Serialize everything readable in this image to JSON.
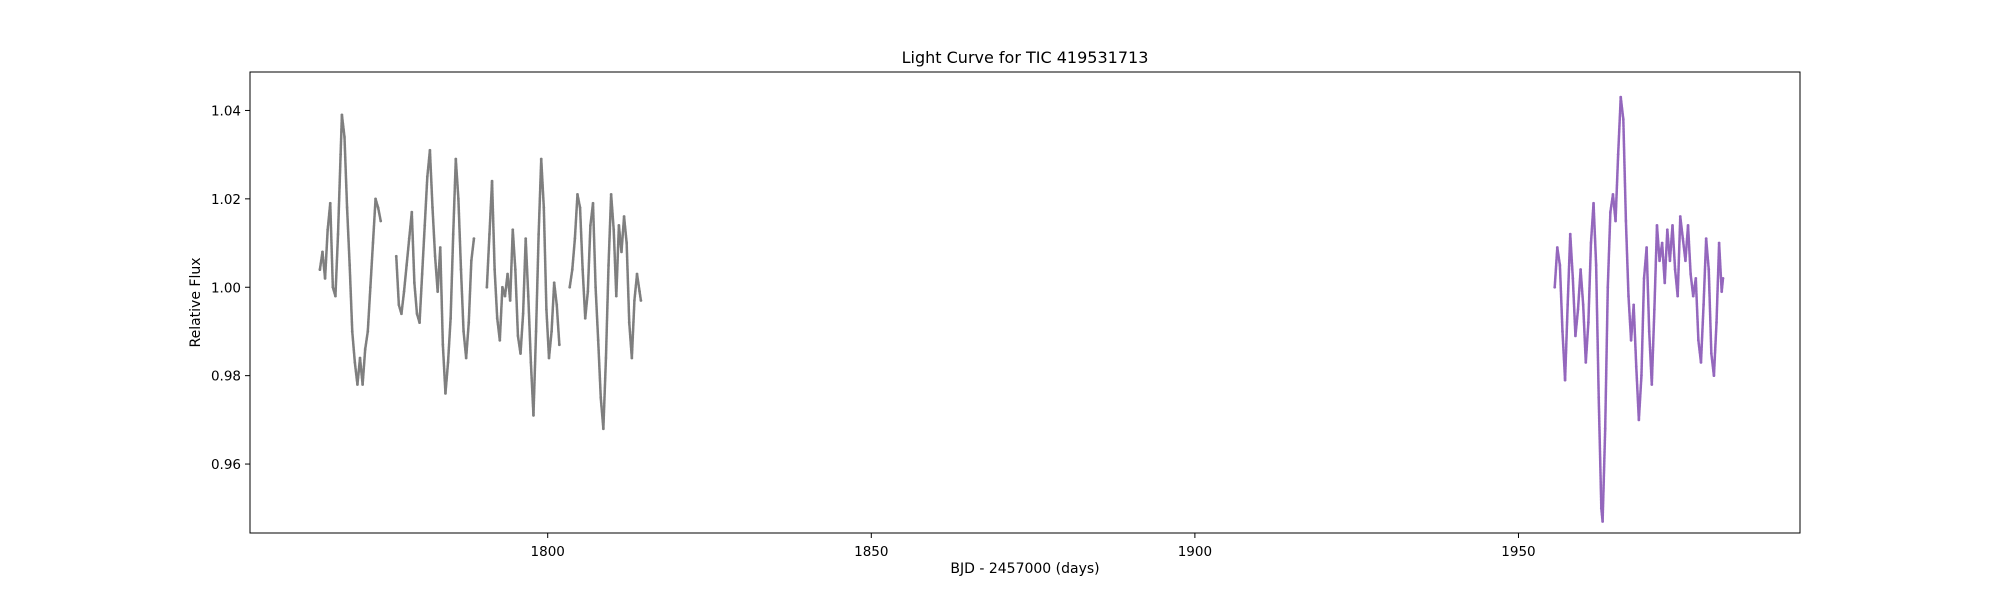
{
  "chart_data": {
    "type": "scatter",
    "title": "Light Curve for TIC 419531713",
    "xlabel": "BJD - 2457000 (days)",
    "ylabel": "Relative Flux",
    "xlim": [
      1754,
      1993.5
    ],
    "ylim": [
      0.9444,
      1.0487
    ],
    "xticks": [
      1800,
      1850,
      1900,
      1950
    ],
    "xtick_labels": [
      "1800",
      "1850",
      "1900",
      "1950"
    ],
    "yticks": [
      0.96,
      0.98,
      1.0,
      1.02,
      1.04
    ],
    "ytick_labels": [
      "0.96",
      "0.98",
      "1.00",
      "1.02",
      "1.04"
    ],
    "grid": false,
    "legend": "none",
    "series": [
      {
        "color": "#7f7f7f",
        "marker_size": "small",
        "points": [
          [
            1764.8,
            1.004
          ],
          [
            1765.2,
            1.008
          ],
          [
            1765.6,
            1.002
          ],
          [
            1766.0,
            1.013
          ],
          [
            1766.4,
            1.019
          ],
          [
            1766.8,
            1.0
          ],
          [
            1767.2,
            0.998
          ],
          [
            1767.6,
            1.012
          ],
          [
            1768.0,
            1.03
          ],
          [
            1768.2,
            1.039
          ],
          [
            1768.6,
            1.034
          ],
          [
            1769.0,
            1.018
          ],
          [
            1769.4,
            1.005
          ],
          [
            1769.8,
            0.99
          ],
          [
            1770.2,
            0.983
          ],
          [
            1770.6,
            0.978
          ],
          [
            1771.0,
            0.984
          ],
          [
            1771.4,
            0.978
          ],
          [
            1771.8,
            0.986
          ],
          [
            1772.2,
            0.99
          ],
          [
            1772.6,
            1.0
          ],
          [
            1773.0,
            1.01
          ],
          [
            1773.4,
            1.02
          ],
          [
            1773.8,
            1.018
          ],
          [
            1774.2,
            1.015
          ],
          [
            1776.6,
            1.007
          ],
          [
            1777.0,
            0.996
          ],
          [
            1777.4,
            0.994
          ],
          [
            1777.8,
            0.999
          ],
          [
            1778.2,
            1.005
          ],
          [
            1778.6,
            1.011
          ],
          [
            1779.0,
            1.017
          ],
          [
            1779.4,
            1.001
          ],
          [
            1779.8,
            0.994
          ],
          [
            1780.2,
            0.992
          ],
          [
            1780.6,
            1.003
          ],
          [
            1781.0,
            1.014
          ],
          [
            1781.4,
            1.025
          ],
          [
            1781.8,
            1.031
          ],
          [
            1782.2,
            1.018
          ],
          [
            1782.6,
            1.007
          ],
          [
            1783.0,
            0.999
          ],
          [
            1783.4,
            1.009
          ],
          [
            1783.8,
            0.987
          ],
          [
            1784.2,
            0.976
          ],
          [
            1784.6,
            0.983
          ],
          [
            1785.0,
            0.993
          ],
          [
            1785.4,
            1.012
          ],
          [
            1785.8,
            1.029
          ],
          [
            1786.2,
            1.02
          ],
          [
            1786.6,
            1.004
          ],
          [
            1787.0,
            0.99
          ],
          [
            1787.4,
            0.984
          ],
          [
            1787.8,
            0.992
          ],
          [
            1788.2,
            1.006
          ],
          [
            1788.6,
            1.011
          ],
          [
            1790.6,
            1.0
          ],
          [
            1791.0,
            1.012
          ],
          [
            1791.4,
            1.024
          ],
          [
            1791.8,
            1.004
          ],
          [
            1792.2,
            0.993
          ],
          [
            1792.6,
            0.988
          ],
          [
            1793.0,
            1.0
          ],
          [
            1793.4,
            0.998
          ],
          [
            1793.8,
            1.003
          ],
          [
            1794.2,
            0.997
          ],
          [
            1794.6,
            1.013
          ],
          [
            1795.0,
            1.004
          ],
          [
            1795.4,
            0.989
          ],
          [
            1795.8,
            0.985
          ],
          [
            1796.2,
            0.994
          ],
          [
            1796.6,
            1.011
          ],
          [
            1797.0,
            0.998
          ],
          [
            1797.4,
            0.983
          ],
          [
            1797.8,
            0.971
          ],
          [
            1798.2,
            0.99
          ],
          [
            1798.6,
            1.012
          ],
          [
            1799.0,
            1.029
          ],
          [
            1799.4,
            1.018
          ],
          [
            1799.8,
            0.995
          ],
          [
            1800.2,
            0.984
          ],
          [
            1800.6,
            0.99
          ],
          [
            1801.0,
            1.001
          ],
          [
            1801.4,
            0.996
          ],
          [
            1801.8,
            0.987
          ],
          [
            1803.4,
            1.0
          ],
          [
            1803.8,
            1.004
          ],
          [
            1804.2,
            1.011
          ],
          [
            1804.6,
            1.021
          ],
          [
            1805.0,
            1.018
          ],
          [
            1805.4,
            1.004
          ],
          [
            1805.8,
            0.993
          ],
          [
            1806.2,
            0.999
          ],
          [
            1806.6,
            1.014
          ],
          [
            1807.0,
            1.019
          ],
          [
            1807.4,
            1.0
          ],
          [
            1807.8,
            0.988
          ],
          [
            1808.2,
            0.975
          ],
          [
            1808.6,
            0.968
          ],
          [
            1809.0,
            0.984
          ],
          [
            1809.4,
            1.005
          ],
          [
            1809.8,
            1.021
          ],
          [
            1810.2,
            1.013
          ],
          [
            1810.6,
            0.998
          ],
          [
            1811.0,
            1.014
          ],
          [
            1811.4,
            1.008
          ],
          [
            1811.8,
            1.016
          ],
          [
            1812.2,
            1.01
          ],
          [
            1812.6,
            0.992
          ],
          [
            1813.0,
            0.984
          ],
          [
            1813.4,
            0.997
          ],
          [
            1813.8,
            1.003
          ],
          [
            1814.2,
            0.999
          ],
          [
            1814.4,
            0.997
          ]
        ]
      },
      {
        "color": "#9467bd",
        "marker_size": "small",
        "points": [
          [
            1955.6,
            1.0
          ],
          [
            1956.0,
            1.009
          ],
          [
            1956.4,
            1.005
          ],
          [
            1956.8,
            0.99
          ],
          [
            1957.2,
            0.979
          ],
          [
            1957.6,
            0.996
          ],
          [
            1958.0,
            1.012
          ],
          [
            1958.4,
            1.002
          ],
          [
            1958.8,
            0.989
          ],
          [
            1959.2,
            0.995
          ],
          [
            1959.6,
            1.004
          ],
          [
            1960.0,
            0.996
          ],
          [
            1960.4,
            0.983
          ],
          [
            1960.8,
            0.992
          ],
          [
            1961.2,
            1.01
          ],
          [
            1961.6,
            1.019
          ],
          [
            1962.0,
            1.005
          ],
          [
            1962.4,
            0.975
          ],
          [
            1962.8,
            0.95
          ],
          [
            1963.0,
            0.947
          ],
          [
            1963.4,
            0.968
          ],
          [
            1963.8,
            1.0
          ],
          [
            1964.2,
            1.017
          ],
          [
            1964.6,
            1.021
          ],
          [
            1965.0,
            1.015
          ],
          [
            1965.4,
            1.03
          ],
          [
            1965.8,
            1.043
          ],
          [
            1966.2,
            1.038
          ],
          [
            1966.6,
            1.015
          ],
          [
            1967.0,
            0.998
          ],
          [
            1967.4,
            0.988
          ],
          [
            1967.8,
            0.996
          ],
          [
            1968.2,
            0.982
          ],
          [
            1968.6,
            0.97
          ],
          [
            1969.0,
            0.98
          ],
          [
            1969.4,
            1.002
          ],
          [
            1969.8,
            1.009
          ],
          [
            1970.2,
            0.99
          ],
          [
            1970.6,
            0.978
          ],
          [
            1971.0,
            0.995
          ],
          [
            1971.4,
            1.014
          ],
          [
            1971.8,
            1.006
          ],
          [
            1972.2,
            1.01
          ],
          [
            1972.6,
            1.001
          ],
          [
            1973.0,
            1.013
          ],
          [
            1973.4,
            1.006
          ],
          [
            1973.8,
            1.014
          ],
          [
            1974.2,
            1.004
          ],
          [
            1974.6,
            0.998
          ],
          [
            1975.0,
            1.016
          ],
          [
            1975.4,
            1.011
          ],
          [
            1975.8,
            1.006
          ],
          [
            1976.2,
            1.014
          ],
          [
            1976.6,
            1.003
          ],
          [
            1977.0,
            0.998
          ],
          [
            1977.4,
            1.002
          ],
          [
            1977.8,
            0.988
          ],
          [
            1978.2,
            0.983
          ],
          [
            1978.6,
            0.996
          ],
          [
            1979.0,
            1.011
          ],
          [
            1979.4,
            1.004
          ],
          [
            1979.8,
            0.985
          ],
          [
            1980.2,
            0.98
          ],
          [
            1980.6,
            0.992
          ],
          [
            1981.0,
            1.01
          ],
          [
            1981.4,
            0.999
          ],
          [
            1981.6,
            1.002
          ]
        ]
      }
    ]
  }
}
